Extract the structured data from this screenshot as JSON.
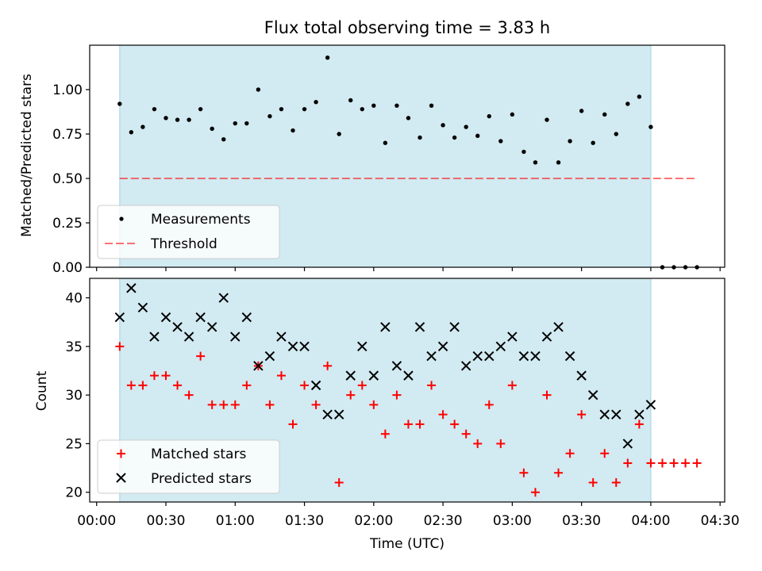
{
  "colors": {
    "observing_band": "#add8e6",
    "measurements": "#000000",
    "threshold": "#ff0000",
    "matched": "#ff0000",
    "predicted": "#000000"
  },
  "chart_data": [
    {
      "type": "scatter",
      "title": "Flux total observing time = 3.83 h",
      "xlabel": "",
      "ylabel": "Matched/Predicted stars",
      "xlim": [
        "23:57",
        "04:32"
      ],
      "ylim": [
        0.0,
        1.25
      ],
      "yticks": [
        0.0,
        0.25,
        0.5,
        0.75,
        1.0
      ],
      "ytick_labels": [
        "0.00",
        "0.25",
        "0.50",
        "0.75",
        "1.00"
      ],
      "observing_window": [
        "00:10",
        "04:00"
      ],
      "legend": "lower-left",
      "series": [
        {
          "name": "Measurements",
          "marker": "dot",
          "x": [
            "00:10",
            "00:15",
            "00:20",
            "00:25",
            "00:30",
            "00:35",
            "00:40",
            "00:45",
            "00:50",
            "00:55",
            "01:00",
            "01:05",
            "01:10",
            "01:15",
            "01:20",
            "01:25",
            "01:30",
            "01:35",
            "01:40",
            "01:45",
            "01:50",
            "01:55",
            "02:00",
            "02:05",
            "02:10",
            "02:15",
            "02:20",
            "02:25",
            "02:30",
            "02:35",
            "02:40",
            "02:45",
            "02:50",
            "02:55",
            "03:00",
            "03:05",
            "03:10",
            "03:15",
            "03:20",
            "03:25",
            "03:30",
            "03:35",
            "03:40",
            "03:45",
            "03:50",
            "03:55",
            "04:00",
            "04:05",
            "04:10",
            "04:15",
            "04:20"
          ],
          "y": [
            0.92,
            0.76,
            0.79,
            0.89,
            0.84,
            0.83,
            0.83,
            0.89,
            0.78,
            0.72,
            0.81,
            0.81,
            1.0,
            0.85,
            0.89,
            0.77,
            0.89,
            0.93,
            1.18,
            0.75,
            0.94,
            0.89,
            0.91,
            0.7,
            0.91,
            0.84,
            0.73,
            0.91,
            0.8,
            0.73,
            0.79,
            0.74,
            0.85,
            0.71,
            0.86,
            0.65,
            0.59,
            0.83,
            0.59,
            0.71,
            0.88,
            0.7,
            0.86,
            0.75,
            0.92,
            0.96,
            0.79,
            0.0,
            0.0,
            0.0,
            0.0
          ]
        },
        {
          "name": "Threshold",
          "style": "dashed",
          "x": [
            "00:10",
            "04:20"
          ],
          "y": [
            0.5,
            0.5
          ]
        }
      ]
    },
    {
      "type": "scatter",
      "title": "",
      "xlabel": "Time (UTC)",
      "ylabel": "Count",
      "xlim": [
        "23:57",
        "04:32"
      ],
      "ylim": [
        19,
        42
      ],
      "yticks": [
        20,
        25,
        30,
        35,
        40
      ],
      "xticks": [
        "00:00",
        "00:30",
        "01:00",
        "01:30",
        "02:00",
        "02:30",
        "03:00",
        "03:30",
        "04:00",
        "04:30"
      ],
      "observing_window": [
        "00:10",
        "04:00"
      ],
      "legend": "lower-left",
      "series": [
        {
          "name": "Matched stars",
          "marker": "plus",
          "x": [
            "00:10",
            "00:15",
            "00:20",
            "00:25",
            "00:30",
            "00:35",
            "00:40",
            "00:45",
            "00:50",
            "00:55",
            "01:00",
            "01:05",
            "01:10",
            "01:15",
            "01:20",
            "01:25",
            "01:30",
            "01:35",
            "01:40",
            "01:45",
            "01:50",
            "01:55",
            "02:00",
            "02:05",
            "02:10",
            "02:15",
            "02:20",
            "02:25",
            "02:30",
            "02:35",
            "02:40",
            "02:45",
            "02:50",
            "02:55",
            "03:00",
            "03:05",
            "03:10",
            "03:15",
            "03:20",
            "03:25",
            "03:30",
            "03:35",
            "03:40",
            "03:45",
            "03:50",
            "03:55",
            "04:00",
            "04:05",
            "04:10",
            "04:15",
            "04:20"
          ],
          "y": [
            35,
            31,
            31,
            32,
            32,
            31,
            30,
            34,
            29,
            29,
            29,
            31,
            33,
            29,
            32,
            27,
            31,
            29,
            33,
            21,
            30,
            31,
            29,
            26,
            30,
            27,
            27,
            31,
            28,
            27,
            26,
            25,
            29,
            25,
            31,
            22,
            20,
            30,
            22,
            24,
            28,
            21,
            24,
            21,
            23,
            27,
            23,
            23,
            23,
            23,
            23
          ]
        },
        {
          "name": "Predicted stars",
          "marker": "x",
          "x": [
            "00:10",
            "00:15",
            "00:20",
            "00:25",
            "00:30",
            "00:35",
            "00:40",
            "00:45",
            "00:50",
            "00:55",
            "01:00",
            "01:05",
            "01:10",
            "01:15",
            "01:20",
            "01:25",
            "01:30",
            "01:35",
            "01:40",
            "01:45",
            "01:50",
            "01:55",
            "02:00",
            "02:05",
            "02:10",
            "02:15",
            "02:20",
            "02:25",
            "02:30",
            "02:35",
            "02:40",
            "02:45",
            "02:50",
            "02:55",
            "03:00",
            "03:05",
            "03:10",
            "03:15",
            "03:20",
            "03:25",
            "03:30",
            "03:35",
            "03:40",
            "03:45",
            "03:50",
            "03:55",
            "04:00"
          ],
          "y": [
            38,
            41,
            39,
            36,
            38,
            37,
            36,
            38,
            37,
            40,
            36,
            38,
            33,
            34,
            36,
            35,
            35,
            31,
            28,
            28,
            32,
            35,
            32,
            37,
            33,
            32,
            37,
            34,
            35,
            37,
            33,
            34,
            34,
            35,
            36,
            34,
            34,
            36,
            37,
            34,
            32,
            30,
            28,
            28,
            25,
            28,
            29
          ]
        }
      ]
    }
  ]
}
